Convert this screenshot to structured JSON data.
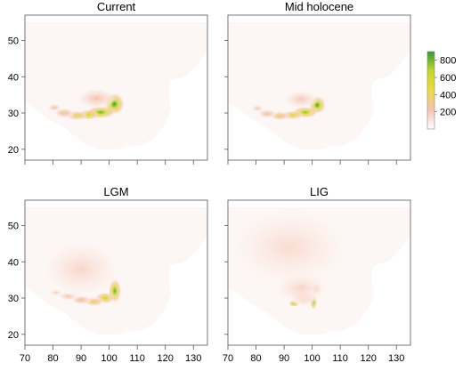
{
  "chart_data": {
    "type": "heatmap",
    "panels": [
      {
        "title": "Current",
        "hotspots": [
          {
            "lon": 101.8,
            "lat": 32.5,
            "value": 900,
            "spread_lon": 2.4,
            "spread_lat": 2.0
          },
          {
            "lon": 97.0,
            "lat": 30.2,
            "value": 820,
            "spread_lon": 3.4,
            "spread_lat": 1.1
          },
          {
            "lon": 92.5,
            "lat": 29.5,
            "value": 650,
            "spread_lon": 2.4,
            "spread_lat": 0.9
          },
          {
            "lon": 88.5,
            "lat": 29.3,
            "value": 470,
            "spread_lon": 2.4,
            "spread_lat": 0.9
          },
          {
            "lon": 84.0,
            "lat": 30.0,
            "value": 330,
            "spread_lon": 2.4,
            "spread_lat": 0.9
          },
          {
            "lon": 80.5,
            "lat": 31.5,
            "value": 260,
            "spread_lon": 1.6,
            "spread_lat": 0.7
          },
          {
            "lon": 95.5,
            "lat": 34.0,
            "value": 230,
            "spread_lon": 4.5,
            "spread_lat": 1.8
          }
        ]
      },
      {
        "title": "Mid holocene",
        "hotspots": [
          {
            "lon": 101.8,
            "lat": 32.2,
            "value": 880,
            "spread_lon": 2.0,
            "spread_lat": 1.6
          },
          {
            "lon": 97.5,
            "lat": 30.2,
            "value": 760,
            "spread_lon": 3.0,
            "spread_lat": 1.0
          },
          {
            "lon": 93.0,
            "lat": 29.4,
            "value": 560,
            "spread_lon": 2.4,
            "spread_lat": 0.8
          },
          {
            "lon": 88.5,
            "lat": 29.2,
            "value": 420,
            "spread_lon": 2.4,
            "spread_lat": 0.8
          },
          {
            "lon": 84.0,
            "lat": 29.8,
            "value": 300,
            "spread_lon": 2.2,
            "spread_lat": 0.8
          },
          {
            "lon": 80.5,
            "lat": 31.3,
            "value": 230,
            "spread_lon": 1.5,
            "spread_lat": 0.6
          },
          {
            "lon": 96.0,
            "lat": 33.8,
            "value": 200,
            "spread_lon": 4.0,
            "spread_lat": 1.6
          }
        ]
      },
      {
        "title": "LGM",
        "hotspots": [
          {
            "lon": 102.0,
            "lat": 32.0,
            "value": 820,
            "spread_lon": 1.5,
            "spread_lat": 2.2
          },
          {
            "lon": 98.5,
            "lat": 30.0,
            "value": 650,
            "spread_lon": 2.2,
            "spread_lat": 1.0
          },
          {
            "lon": 94.5,
            "lat": 29.0,
            "value": 460,
            "spread_lon": 2.4,
            "spread_lat": 0.8
          },
          {
            "lon": 90.0,
            "lat": 29.5,
            "value": 320,
            "spread_lon": 2.5,
            "spread_lat": 0.8
          },
          {
            "lon": 85.5,
            "lat": 30.5,
            "value": 230,
            "spread_lon": 2.5,
            "spread_lat": 0.8
          },
          {
            "lon": 81.0,
            "lat": 31.5,
            "value": 180,
            "spread_lon": 1.6,
            "spread_lat": 0.6
          },
          {
            "lon": 90.0,
            "lat": 38.0,
            "value": 150,
            "spread_lon": 9.0,
            "spread_lat": 5.0
          }
        ]
      },
      {
        "title": "LIG",
        "hotspots": [
          {
            "lon": 100.5,
            "lat": 29.0,
            "value": 800,
            "spread_lon": 0.8,
            "spread_lat": 1.4
          },
          {
            "lon": 93.5,
            "lat": 28.5,
            "value": 700,
            "spread_lon": 1.2,
            "spread_lat": 0.6
          },
          {
            "lon": 101.5,
            "lat": 32.5,
            "value": 350,
            "spread_lon": 1.2,
            "spread_lat": 1.0
          },
          {
            "lon": 97.0,
            "lat": 30.0,
            "value": 300,
            "spread_lon": 3.0,
            "spread_lat": 1.4
          },
          {
            "lon": 96.0,
            "lat": 33.0,
            "value": 160,
            "spread_lon": 6.0,
            "spread_lat": 3.0
          },
          {
            "lon": 92.0,
            "lat": 44.0,
            "value": 130,
            "spread_lon": 14.0,
            "spread_lat": 7.0
          }
        ]
      }
    ],
    "x_axis": {
      "range": [
        70,
        135
      ],
      "ticks": [
        70,
        80,
        90,
        100,
        110,
        120,
        130
      ]
    },
    "y_axis": {
      "range": [
        17,
        57
      ],
      "ticks": [
        20,
        30,
        40,
        50
      ]
    },
    "legend": {
      "placement": "right",
      "range": [
        0,
        900
      ],
      "ticks": [
        200,
        400,
        600,
        800
      ],
      "colors": [
        "#ffffff",
        "#f4c2b0",
        "#eadc3e",
        "#c6d821",
        "#2d9b3a"
      ]
    },
    "background_value": 20,
    "background_color": "#fcf6f4"
  }
}
